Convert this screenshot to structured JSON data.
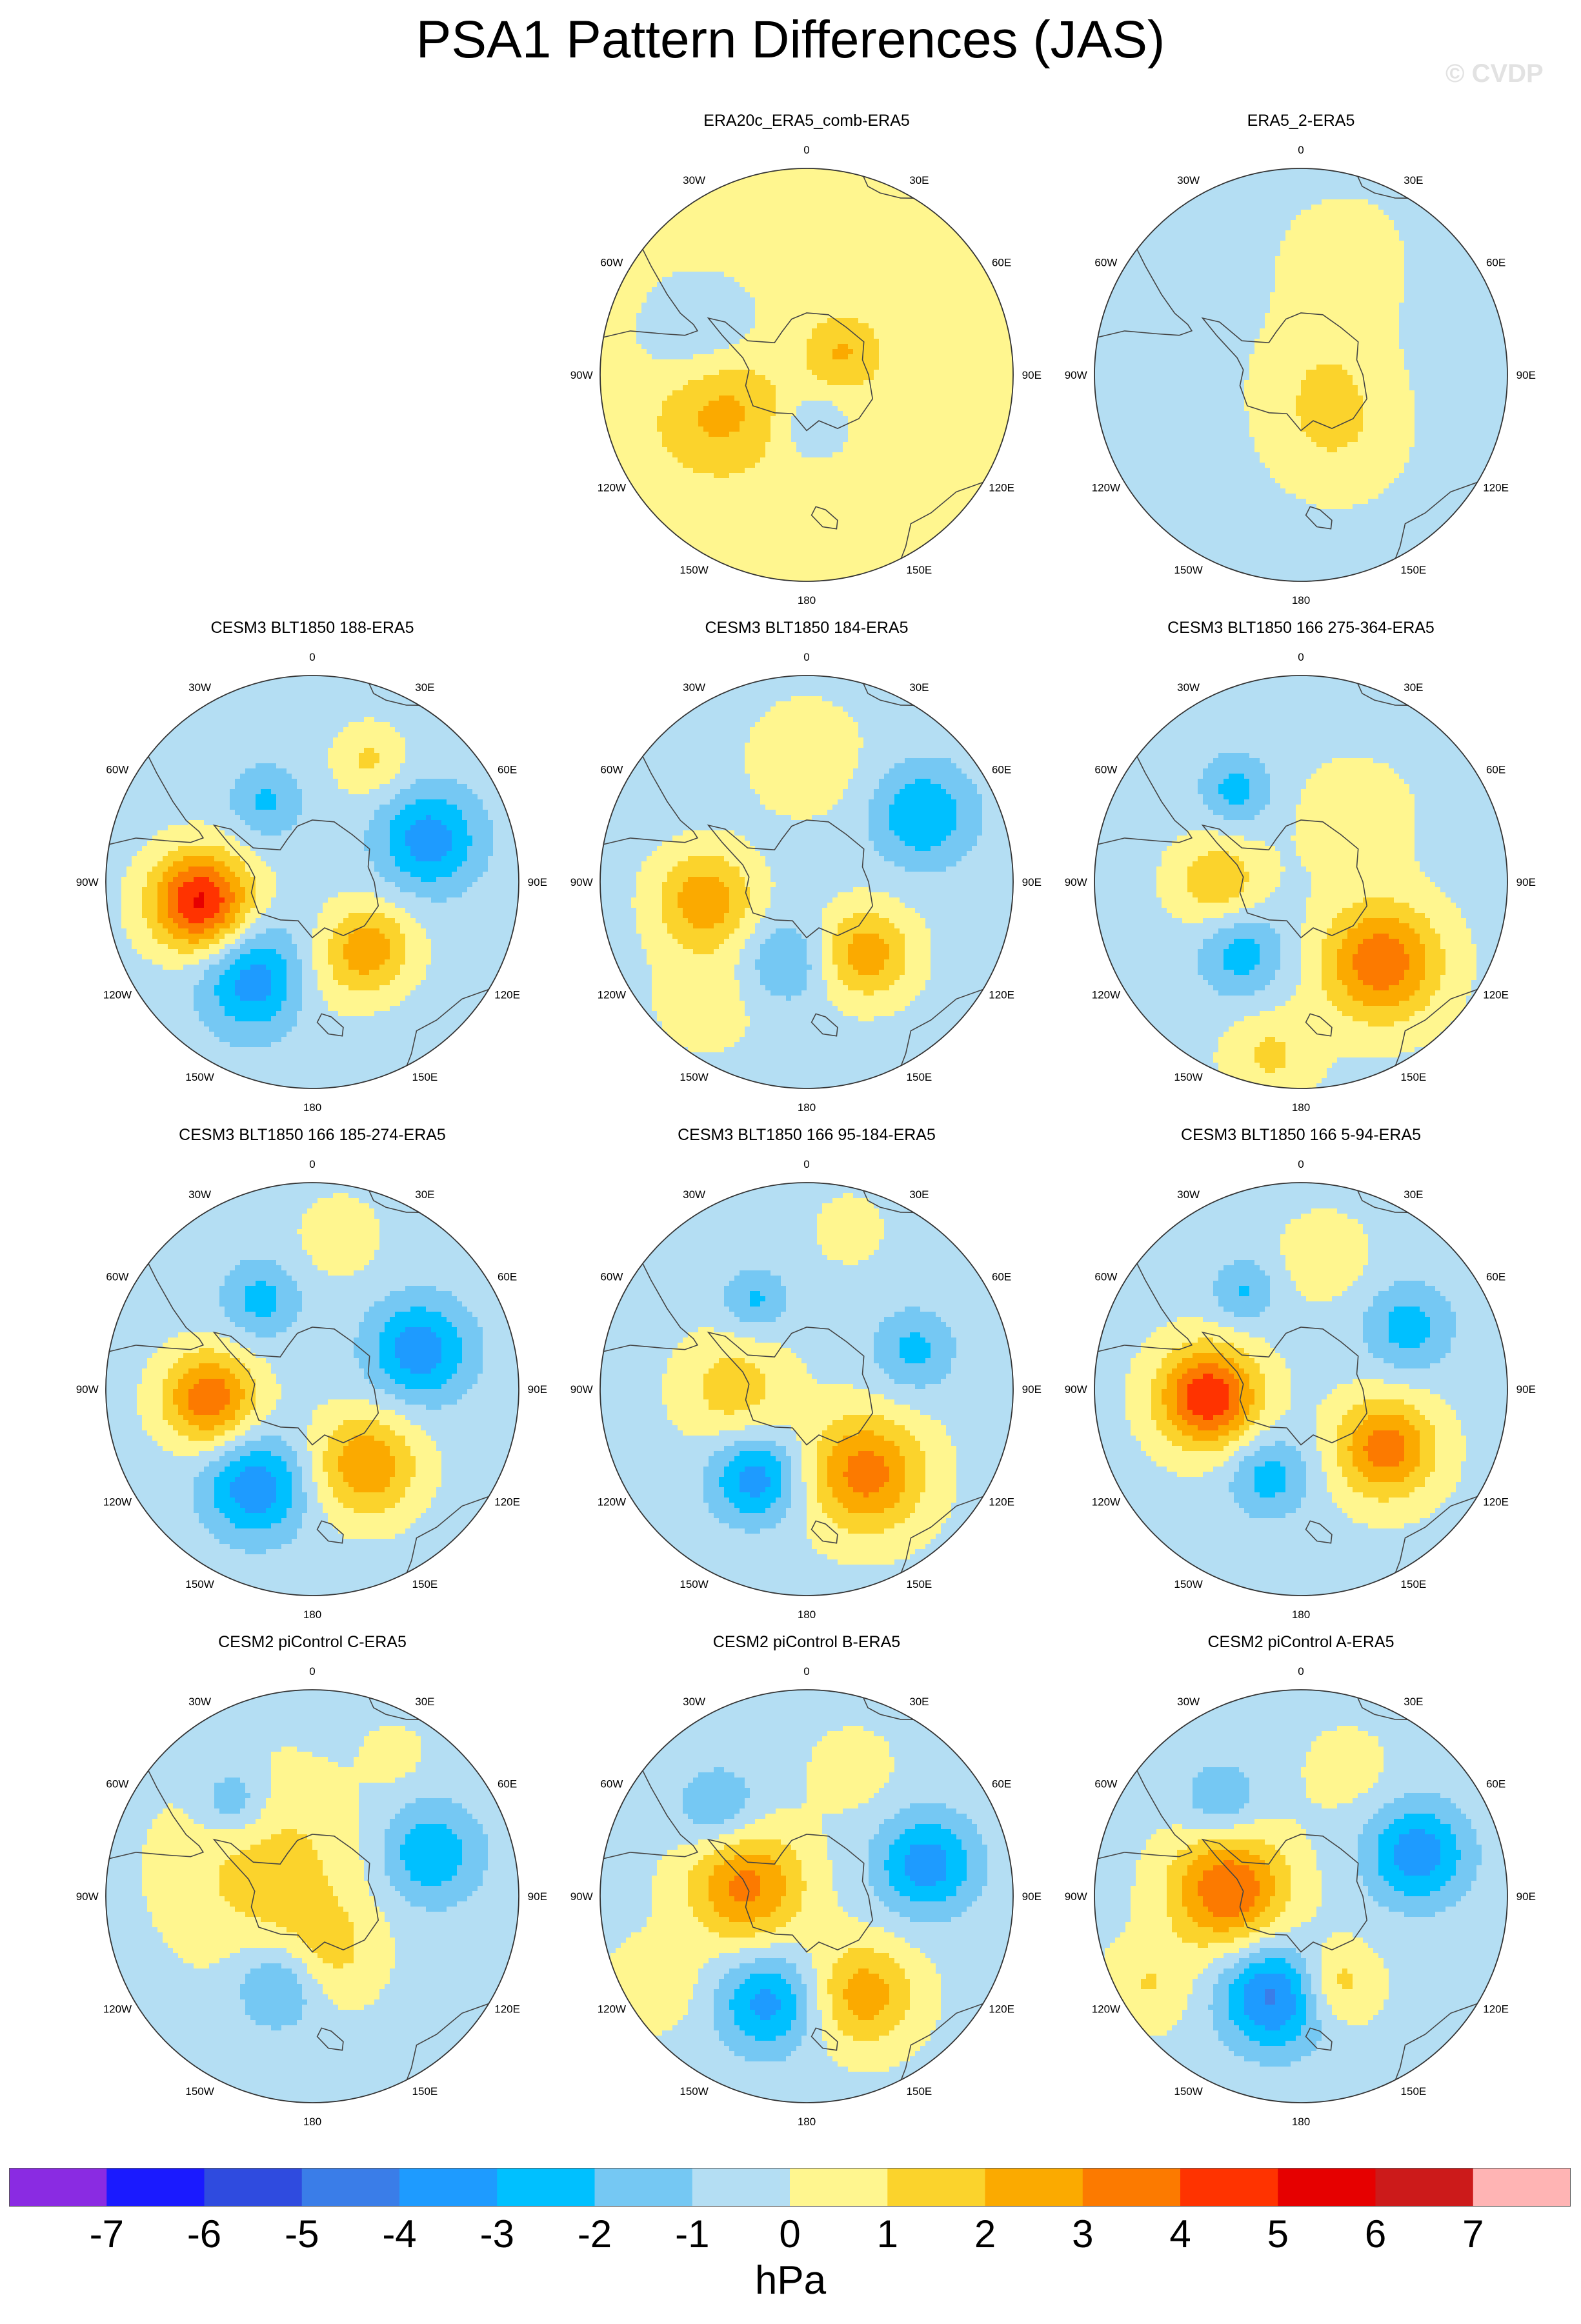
{
  "page": {
    "title": "PSA1 Pattern Differences (JAS)",
    "watermark": "© CVDP",
    "units": "hPa"
  },
  "colors": {
    "bins": [
      "#8a2be2",
      "#1a1aff",
      "#2f4bdf",
      "#3a7de8",
      "#1e9bff",
      "#00c0ff",
      "#75c8f3",
      "#b4def3",
      "#fff68f",
      "#fbd32c",
      "#fbaa00",
      "#fc7a00",
      "#ff3300",
      "#e60000",
      "#cc1a1a",
      "#ffb4b4"
    ],
    "land_outline": "#444444",
    "grid": "#cfcfcf"
  },
  "chart_data": {
    "type": "polar_contour_panels",
    "projection": "South Polar Stereographic",
    "variable": "PSA1 pattern difference",
    "season": "JAS",
    "units": "hPa",
    "contour_levels": [
      -7,
      -6,
      -5,
      -4,
      -3,
      -2,
      -1,
      0,
      1,
      2,
      3,
      4,
      5,
      6,
      7
    ],
    "colorbar_labels": [
      "-7",
      "-6",
      "-5",
      "-4",
      "-3",
      "-2",
      "-1",
      "0",
      "1",
      "2",
      "3",
      "4",
      "5",
      "6",
      "7"
    ],
    "longitude_labels": [
      {
        "lon": 0,
        "text": "0"
      },
      {
        "lon": 30,
        "text": "30E"
      },
      {
        "lon": 60,
        "text": "60E"
      },
      {
        "lon": 90,
        "text": "90E"
      },
      {
        "lon": 120,
        "text": "120E"
      },
      {
        "lon": 150,
        "text": "150E"
      },
      {
        "lon": 180,
        "text": "180"
      },
      {
        "lon": -150,
        "text": "150W"
      },
      {
        "lon": -120,
        "text": "120W"
      },
      {
        "lon": -90,
        "text": "90W"
      },
      {
        "lon": -60,
        "text": "60W"
      },
      {
        "lon": -30,
        "text": "30W"
      }
    ],
    "panels": [
      {
        "title": "ERA20c_ERA5_comb-ERA5",
        "row": 0,
        "col": 1,
        "background": 0.5,
        "centers": [
          {
            "lon": -110,
            "r": 0.45,
            "amp": 2.1,
            "size": 0.2
          },
          {
            "lon": 60,
            "r": 0.2,
            "amp": 1.6,
            "size": 0.12
          },
          {
            "lon": -70,
            "r": 0.55,
            "amp": -1.5,
            "size": 0.22
          },
          {
            "lon": 170,
            "r": 0.25,
            "amp": -1.4,
            "size": 0.12
          }
        ]
      },
      {
        "title": "ERA5_2-ERA5",
        "row": 0,
        "col": 2,
        "background": -0.5,
        "centers": [
          {
            "lon": 150,
            "r": 0.35,
            "amp": 1.2,
            "size": 0.25
          },
          {
            "lon": 90,
            "r": 0.1,
            "amp": 1.0,
            "size": 0.25
          },
          {
            "lon": 20,
            "r": 0.6,
            "amp": 1.0,
            "size": 0.25
          }
        ]
      },
      {
        "title": "CESM3 BLT1850 188-ERA5",
        "row": 1,
        "col": 0,
        "background": -0.4,
        "centers": [
          {
            "lon": -100,
            "r": 0.55,
            "amp": 5.6,
            "size": 0.17
          },
          {
            "lon": 70,
            "r": 0.6,
            "amp": -3.2,
            "size": 0.17
          },
          {
            "lon": -150,
            "r": 0.55,
            "amp": -3.3,
            "size": 0.18
          },
          {
            "lon": 140,
            "r": 0.42,
            "amp": 3.1,
            "size": 0.15
          },
          {
            "lon": 25,
            "r": 0.65,
            "amp": 1.6,
            "size": 0.12
          },
          {
            "lon": -30,
            "r": 0.45,
            "amp": -1.8,
            "size": 0.12
          },
          {
            "lon": 180,
            "r": 0.5,
            "amp": 0.8,
            "size": 0.15
          }
        ]
      },
      {
        "title": "CESM3 BLT1850 184-ERA5",
        "row": 1,
        "col": 1,
        "background": -0.4,
        "centers": [
          {
            "lon": -100,
            "r": 0.5,
            "amp": 3.1,
            "size": 0.17
          },
          {
            "lon": 60,
            "r": 0.65,
            "amp": -2.6,
            "size": 0.17
          },
          {
            "lon": 140,
            "r": 0.45,
            "amp": 3.0,
            "size": 0.16
          },
          {
            "lon": -165,
            "r": 0.4,
            "amp": -1.8,
            "size": 0.14
          },
          {
            "lon": 0,
            "r": 0.6,
            "amp": 1.2,
            "size": 0.2
          },
          {
            "lon": -140,
            "r": 0.75,
            "amp": 0.9,
            "size": 0.2
          }
        ]
      },
      {
        "title": "CESM3 BLT1850 166 275-364-ERA5",
        "row": 1,
        "col": 2,
        "background": -0.3,
        "centers": [
          {
            "lon": 135,
            "r": 0.55,
            "amp": 4.1,
            "size": 0.2
          },
          {
            "lon": -90,
            "r": 0.4,
            "amp": 2.2,
            "size": 0.15
          },
          {
            "lon": -140,
            "r": 0.45,
            "amp": -2.2,
            "size": 0.15
          },
          {
            "lon": -35,
            "r": 0.55,
            "amp": -2.1,
            "size": 0.12
          },
          {
            "lon": 40,
            "r": 0.4,
            "amp": 1.2,
            "size": 0.18
          },
          {
            "lon": -170,
            "r": 0.85,
            "amp": 1.5,
            "size": 0.15
          }
        ]
      },
      {
        "title": "CESM3 BLT1850 166 185-274-ERA5",
        "row": 2,
        "col": 0,
        "background": -0.4,
        "centers": [
          {
            "lon": -95,
            "r": 0.5,
            "amp": 4.2,
            "size": 0.16
          },
          {
            "lon": 70,
            "r": 0.55,
            "amp": -3.3,
            "size": 0.17
          },
          {
            "lon": -150,
            "r": 0.55,
            "amp": -3.4,
            "size": 0.17
          },
          {
            "lon": 145,
            "r": 0.45,
            "amp": 3.3,
            "size": 0.18
          },
          {
            "lon": -30,
            "r": 0.5,
            "amp": -2.0,
            "size": 0.13
          },
          {
            "lon": 10,
            "r": 0.75,
            "amp": 1.0,
            "size": 0.15
          }
        ]
      },
      {
        "title": "CESM3 BLT1850 166 95-184-ERA5",
        "row": 2,
        "col": 1,
        "background": -0.3,
        "centers": [
          {
            "lon": 145,
            "r": 0.5,
            "amp": 3.8,
            "size": 0.2
          },
          {
            "lon": -90,
            "r": 0.35,
            "amp": 1.9,
            "size": 0.18
          },
          {
            "lon": -150,
            "r": 0.5,
            "amp": -3.3,
            "size": 0.15
          },
          {
            "lon": 70,
            "r": 0.55,
            "amp": -2.0,
            "size": 0.14
          },
          {
            "lon": -30,
            "r": 0.5,
            "amp": -1.9,
            "size": 0.11
          },
          {
            "lon": 15,
            "r": 0.8,
            "amp": 1.2,
            "size": 0.1
          }
        ]
      },
      {
        "title": "CESM3 BLT1850 166 5-94-ERA5",
        "row": 2,
        "col": 2,
        "background": -0.3,
        "centers": [
          {
            "lon": -95,
            "r": 0.45,
            "amp": 5.2,
            "size": 0.17
          },
          {
            "lon": 125,
            "r": 0.5,
            "amp": 3.9,
            "size": 0.17
          },
          {
            "lon": -160,
            "r": 0.45,
            "amp": -2.2,
            "size": 0.14
          },
          {
            "lon": 60,
            "r": 0.6,
            "amp": -2.2,
            "size": 0.15
          },
          {
            "lon": -30,
            "r": 0.55,
            "amp": -1.8,
            "size": 0.11
          },
          {
            "lon": 10,
            "r": 0.65,
            "amp": 1.0,
            "size": 0.15
          }
        ]
      },
      {
        "title": "CESM2 piControl C-ERA5",
        "row": 3,
        "col": 0,
        "background": -0.4,
        "centers": [
          {
            "lon": -60,
            "r": 0.25,
            "amp": 1.8,
            "size": 0.35
          },
          {
            "lon": 70,
            "r": 0.6,
            "amp": -2.6,
            "size": 0.17
          },
          {
            "lon": -160,
            "r": 0.45,
            "amp": -2.5,
            "size": 0.15
          },
          {
            "lon": -40,
            "r": 0.6,
            "amp": -2.0,
            "size": 0.12
          },
          {
            "lon": 170,
            "r": 0.3,
            "amp": 1.5,
            "size": 0.18
          },
          {
            "lon": 30,
            "r": 0.8,
            "amp": 0.9,
            "size": 0.1
          }
        ]
      },
      {
        "title": "CESM2 piControl B-ERA5",
        "row": 3,
        "col": 1,
        "background": -0.3,
        "centers": [
          {
            "lon": -80,
            "r": 0.3,
            "amp": 3.6,
            "size": 0.2
          },
          {
            "lon": 75,
            "r": 0.6,
            "amp": -3.3,
            "size": 0.17
          },
          {
            "lon": -160,
            "r": 0.55,
            "amp": -3.1,
            "size": 0.17
          },
          {
            "lon": 150,
            "r": 0.55,
            "amp": 2.9,
            "size": 0.18
          },
          {
            "lon": -45,
            "r": 0.6,
            "amp": -1.9,
            "size": 0.14
          },
          {
            "lon": 20,
            "r": 0.65,
            "amp": 0.8,
            "size": 0.15
          },
          {
            "lon": -120,
            "r": 0.85,
            "amp": 1.2,
            "size": 0.15
          }
        ]
      },
      {
        "title": "CESM2 piControl A-ERA5",
        "row": 3,
        "col": 2,
        "background": -0.3,
        "centers": [
          {
            "lon": -85,
            "r": 0.35,
            "amp": 4.3,
            "size": 0.2
          },
          {
            "lon": 70,
            "r": 0.6,
            "amp": -3.4,
            "size": 0.17
          },
          {
            "lon": -165,
            "r": 0.5,
            "amp": -4.1,
            "size": 0.18
          },
          {
            "lon": 160,
            "r": 0.45,
            "amp": 2.2,
            "size": 0.14
          },
          {
            "lon": -40,
            "r": 0.6,
            "amp": -1.8,
            "size": 0.13
          },
          {
            "lon": 20,
            "r": 0.65,
            "amp": 0.8,
            "size": 0.15
          },
          {
            "lon": -120,
            "r": 0.85,
            "amp": 1.3,
            "size": 0.15
          }
        ]
      }
    ]
  }
}
